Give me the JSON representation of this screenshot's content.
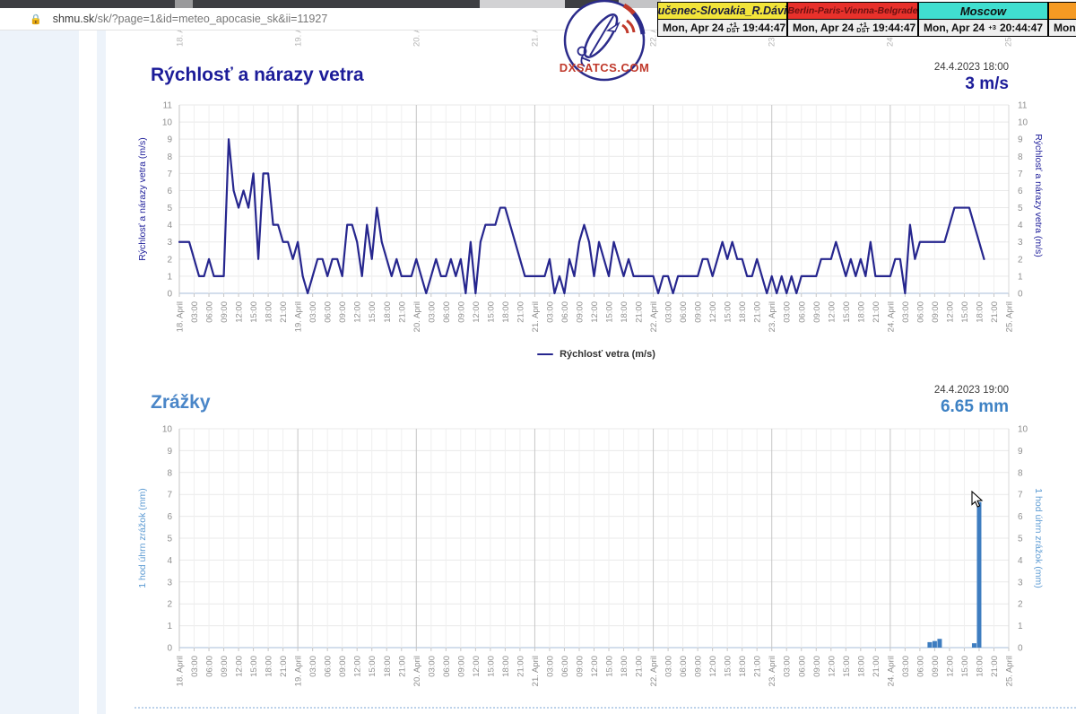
{
  "browser": {
    "url_domain": "shmu.sk",
    "url_path": "/sk/?page=1&id=meteo_apocasie_sk&ii=11927",
    "lock_icon": "padlock-icon"
  },
  "logo": {
    "text": "DXSATCS.COM"
  },
  "clocks": {
    "columns": [
      {
        "city": "Lučenec-Slovakia_R.Dávid",
        "header_bg": "#f2e43a",
        "header_color": "#1a1a3c",
        "date": "Mon, Apr 24",
        "offset": "+1",
        "dst": "DST",
        "time": "19:44:47"
      },
      {
        "city": "Berlin-Paris-Vienna-Belgrade",
        "header_bg": "#e8312b",
        "header_color": "#6b1010",
        "date": "Mon, Apr 24",
        "offset": "+1",
        "dst": "DST",
        "time": "19:44:47"
      },
      {
        "city": "Moscow",
        "header_bg": "#40dfd0",
        "header_color": "#101010",
        "date": "Mon, Apr 24",
        "offset": "+3",
        "dst": "",
        "time": "20:44:47"
      },
      {
        "city": "",
        "header_bg": "#f59a23",
        "header_color": "#101010",
        "date": "Mon,",
        "offset": "",
        "dst": "",
        "time": ""
      }
    ]
  },
  "x_axis": {
    "days": [
      "18. April",
      "19. April",
      "20. April",
      "21. April",
      "22. April",
      "23. April",
      "24. April",
      "25. April"
    ],
    "intraday": [
      "03:00",
      "06:00",
      "09:00",
      "12:00",
      "15:00",
      "18:00",
      "21:00"
    ]
  },
  "chart_data": [
    {
      "id": "wind",
      "type": "line",
      "title": "Rýchlosť a nárazy vetra",
      "title_color": "#1c1c99",
      "timestamp": "24.4.2023 18:00",
      "current_value": "3 m/s",
      "ylabel_left": "Rýchlosť a nárazy vetra (m/s)",
      "ylabel_right": "Rýchlosť a nárazy vetra (m/s)",
      "ylim": [
        0,
        11
      ],
      "y_ticks": [
        0,
        1,
        2,
        3,
        4,
        5,
        6,
        7,
        8,
        9,
        10,
        11
      ],
      "x_range_hours": 168,
      "grid": true,
      "legend": [
        {
          "label": "Rýchlosť vetra (m/s)",
          "color": "#26268e"
        }
      ],
      "legend_position": "bottom-center",
      "line_color": "#26268e",
      "hourly_values": [
        3,
        3,
        3,
        2,
        1,
        1,
        2,
        1,
        1,
        1,
        9,
        6,
        5,
        6,
        5,
        7,
        2,
        7,
        7,
        4,
        4,
        3,
        3,
        2,
        3,
        1,
        0,
        1,
        2,
        2,
        1,
        2,
        2,
        1,
        4,
        4,
        3,
        1,
        4,
        2,
        5,
        3,
        2,
        1,
        2,
        1,
        1,
        1,
        2,
        1,
        0,
        1,
        2,
        1,
        1,
        2,
        1,
        2,
        0,
        3,
        0,
        3,
        4,
        4,
        4,
        5,
        5,
        4,
        3,
        2,
        1,
        1,
        1,
        1,
        1,
        2,
        0,
        1,
        0,
        2,
        1,
        3,
        4,
        3,
        1,
        3,
        2,
        1,
        3,
        2,
        1,
        2,
        1,
        1,
        1,
        1,
        1,
        0,
        1,
        1,
        0,
        1,
        1,
        1,
        1,
        1,
        2,
        2,
        1,
        2,
        3,
        2,
        3,
        2,
        2,
        1,
        1,
        2,
        1,
        0,
        1,
        0,
        1,
        0,
        1,
        0,
        1,
        1,
        1,
        1,
        2,
        2,
        2,
        3,
        2,
        1,
        2,
        1,
        2,
        1,
        3,
        1,
        1,
        1,
        1,
        2,
        2,
        0,
        4,
        2,
        3,
        3,
        3,
        3,
        3,
        3,
        4,
        5,
        5,
        5,
        5,
        4,
        3,
        2
      ]
    },
    {
      "id": "precip",
      "type": "bar",
      "title": "Zrážky",
      "title_color": "#4a86c8",
      "timestamp": "24.4.2023 19:00",
      "current_value": "6.65 mm",
      "ylabel_left": "1 hod úhrn zrážok (mm)",
      "ylabel_right": "1 hod úhrn zrážok (mm)",
      "ylim": [
        0,
        10
      ],
      "y_ticks": [
        0,
        1,
        2,
        3,
        4,
        5,
        6,
        7,
        8,
        9,
        10
      ],
      "x_range_hours": 168,
      "grid": true,
      "bar_color": "#3e7dc0",
      "bars": [
        {
          "hour": 152,
          "time": "24. April 08:00",
          "value": 0.25
        },
        {
          "hour": 153,
          "time": "24. April 09:00",
          "value": 0.3
        },
        {
          "hour": 154,
          "time": "24. April 10:00",
          "value": 0.4
        },
        {
          "hour": 161,
          "time": "24. April 17:00",
          "value": 0.2
        },
        {
          "hour": 162,
          "time": "24. April 18:00",
          "value": 6.65
        }
      ]
    }
  ]
}
